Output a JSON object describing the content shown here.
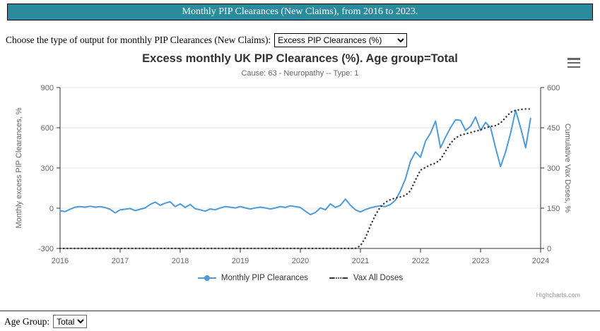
{
  "header": {
    "title": "Monthly PIP Clearances (New Claims), from 2016 to 2023."
  },
  "colors": {
    "header_bg": "#2b8a9b",
    "grid": "#e6e6e6",
    "axis": "#333333"
  },
  "icons": {
    "chart_menu": "hamburger-menu-icon"
  },
  "controls": {
    "output_label": "Choose the type of output for monthly PIP Clearances (New Claims):",
    "output_value": "Excess PIP Clearances (%)"
  },
  "chart_data": {
    "type": "line",
    "title": "Excess monthly UK PIP Clearances (%). Age group=Total",
    "subtitle": "Cause: 63 - Neuropathy -- Type: 1",
    "credits": "Highcharts.com",
    "legend_position": "bottom",
    "grid": "horizontal-only",
    "x_axis": {
      "min": 2016,
      "max": 2024,
      "ticks": [
        2016,
        2017,
        2018,
        2019,
        2020,
        2021,
        2022,
        2023,
        2024
      ]
    },
    "y_left": {
      "label": "Monthly excess PIP Clearances, %",
      "min": -300,
      "max": 900,
      "ticks": [
        -300,
        0,
        300,
        600,
        900
      ]
    },
    "y_right": {
      "label": "Cumulative Vax Doses, %",
      "min": 0,
      "max": 600,
      "ticks": [
        0,
        150,
        300,
        450,
        600
      ]
    },
    "x_start_year": 2016,
    "x_step_months": 1,
    "series": [
      {
        "name": "Monthly PIP Clearances",
        "axis": "left",
        "color": "#4d9bd8",
        "style": "solid",
        "values": [
          -20,
          -25,
          -8,
          8,
          12,
          8,
          15,
          8,
          12,
          5,
          -8,
          -35,
          -12,
          -8,
          -2,
          -18,
          -8,
          2,
          28,
          45,
          22,
          38,
          48,
          12,
          32,
          6,
          28,
          -4,
          -12,
          -22,
          -6,
          -12,
          2,
          12,
          8,
          2,
          12,
          2,
          -6,
          2,
          8,
          2,
          -6,
          2,
          12,
          6,
          18,
          12,
          6,
          -22,
          -48,
          -32,
          2,
          -12,
          32,
          6,
          22,
          68,
          22,
          -12,
          -28,
          -10,
          2,
          12,
          18,
          12,
          28,
          60,
          130,
          220,
          350,
          420,
          380,
          500,
          560,
          650,
          450,
          530,
          600,
          660,
          655,
          580,
          610,
          680,
          580,
          640,
          600,
          450,
          310,
          420,
          560,
          730,
          600,
          450,
          670
        ]
      },
      {
        "name": "Vax All Doses",
        "axis": "right",
        "color": "#333344",
        "style": "dotted",
        "values": [
          0,
          0,
          0,
          0,
          0,
          0,
          0,
          0,
          0,
          0,
          0,
          0,
          0,
          0,
          0,
          0,
          0,
          0,
          0,
          0,
          0,
          0,
          0,
          0,
          0,
          0,
          0,
          0,
          0,
          0,
          0,
          0,
          0,
          0,
          0,
          0,
          0,
          0,
          0,
          0,
          0,
          0,
          0,
          0,
          0,
          0,
          0,
          0,
          0,
          0,
          0,
          0,
          0,
          0,
          0,
          0,
          0,
          0,
          0,
          0,
          10,
          40,
          85,
          125,
          155,
          172,
          182,
          188,
          192,
          198,
          215,
          255,
          292,
          302,
          312,
          318,
          332,
          362,
          392,
          412,
          422,
          427,
          432,
          437,
          442,
          450,
          455,
          458,
          468,
          488,
          508,
          515,
          518,
          520,
          520
        ]
      }
    ]
  },
  "footer": {
    "age_group_label": "Age Group:",
    "age_group_value": "Total"
  }
}
